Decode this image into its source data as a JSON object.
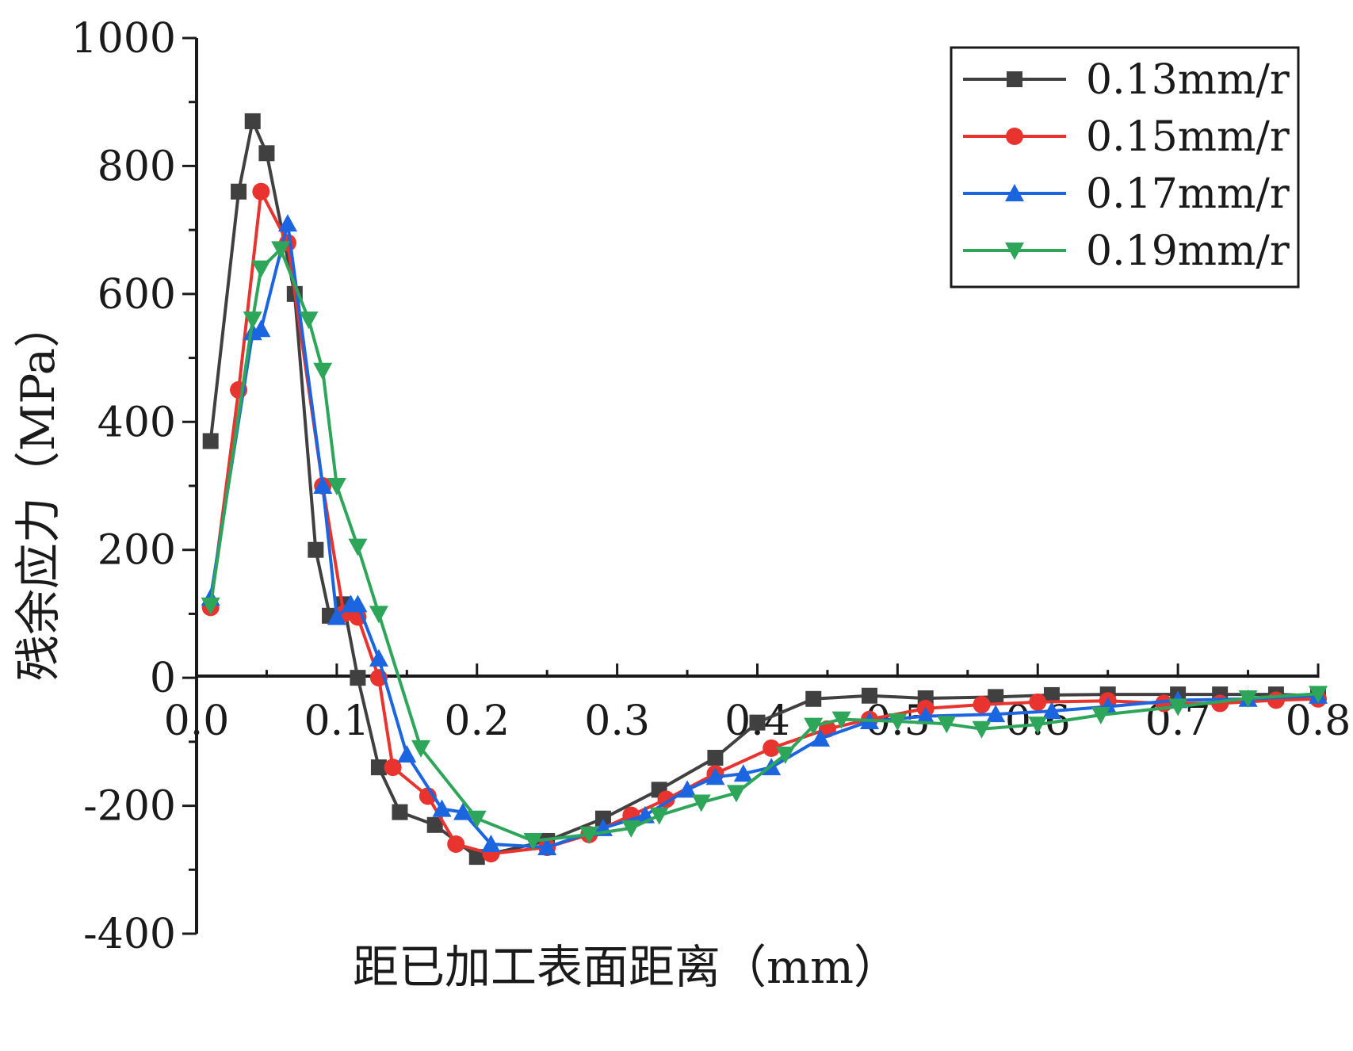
{
  "chart_data": {
    "type": "line",
    "title": "",
    "xlabel": "距已加工表面距离（mm）",
    "ylabel": "残余应力（MPa）",
    "xlim": [
      0.0,
      0.8
    ],
    "ylim": [
      -400,
      1000
    ],
    "x_ticks": [
      0.0,
      0.1,
      0.2,
      0.3,
      0.4,
      0.5,
      0.6,
      0.7,
      0.8
    ],
    "x_tick_labels": [
      "0.0",
      "0.1",
      "0.2",
      "0.3",
      "0.4",
      "0.5",
      "0.6",
      "0.7",
      "0.8"
    ],
    "y_ticks": [
      -400,
      -200,
      0,
      200,
      400,
      600,
      800,
      1000
    ],
    "y_tick_labels": [
      "-400",
      "-200",
      "0",
      "200",
      "400",
      "600",
      "800",
      "1000"
    ],
    "grid": false,
    "legend_position": "top-right",
    "series": [
      {
        "name": "0.13mm/r",
        "color": "#404040",
        "marker": "square",
        "points": [
          [
            0.01,
            370
          ],
          [
            0.03,
            760
          ],
          [
            0.04,
            870
          ],
          [
            0.05,
            820
          ],
          [
            0.07,
            600
          ],
          [
            0.085,
            200
          ],
          [
            0.095,
            97
          ],
          [
            0.105,
            115
          ],
          [
            0.115,
            0
          ],
          [
            0.13,
            -140
          ],
          [
            0.145,
            -210
          ],
          [
            0.17,
            -230
          ],
          [
            0.2,
            -280
          ],
          [
            0.25,
            -255
          ],
          [
            0.29,
            -220
          ],
          [
            0.33,
            -175
          ],
          [
            0.37,
            -125
          ],
          [
            0.4,
            -70
          ],
          [
            0.44,
            -33
          ],
          [
            0.48,
            -28
          ],
          [
            0.52,
            -32
          ],
          [
            0.57,
            -30
          ],
          [
            0.61,
            -27
          ],
          [
            0.65,
            -26
          ],
          [
            0.7,
            -26
          ],
          [
            0.73,
            -26
          ],
          [
            0.77,
            -26
          ],
          [
            0.8,
            -28
          ]
        ]
      },
      {
        "name": "0.15mm/r",
        "color": "#e8332e",
        "marker": "circle",
        "points": [
          [
            0.01,
            110
          ],
          [
            0.03,
            450
          ],
          [
            0.046,
            760
          ],
          [
            0.065,
            680
          ],
          [
            0.09,
            300
          ],
          [
            0.105,
            100
          ],
          [
            0.115,
            95
          ],
          [
            0.13,
            0
          ],
          [
            0.14,
            -140
          ],
          [
            0.165,
            -185
          ],
          [
            0.185,
            -260
          ],
          [
            0.21,
            -275
          ],
          [
            0.25,
            -265
          ],
          [
            0.28,
            -245
          ],
          [
            0.31,
            -215
          ],
          [
            0.335,
            -190
          ],
          [
            0.37,
            -150
          ],
          [
            0.41,
            -110
          ],
          [
            0.45,
            -80
          ],
          [
            0.48,
            -65
          ],
          [
            0.52,
            -48
          ],
          [
            0.56,
            -42
          ],
          [
            0.6,
            -38
          ],
          [
            0.65,
            -36
          ],
          [
            0.69,
            -40
          ],
          [
            0.73,
            -40
          ],
          [
            0.77,
            -35
          ],
          [
            0.8,
            -33
          ]
        ]
      },
      {
        "name": "0.17mm/r",
        "color": "#1c65e0",
        "marker": "triangle-up",
        "points": [
          [
            0.01,
            125
          ],
          [
            0.04,
            540
          ],
          [
            0.046,
            545
          ],
          [
            0.065,
            710
          ],
          [
            0.09,
            300
          ],
          [
            0.1,
            95
          ],
          [
            0.11,
            115
          ],
          [
            0.115,
            115
          ],
          [
            0.13,
            30
          ],
          [
            0.15,
            -120
          ],
          [
            0.175,
            -205
          ],
          [
            0.19,
            -210
          ],
          [
            0.21,
            -260
          ],
          [
            0.25,
            -265
          ],
          [
            0.29,
            -235
          ],
          [
            0.32,
            -215
          ],
          [
            0.35,
            -175
          ],
          [
            0.37,
            -155
          ],
          [
            0.39,
            -150
          ],
          [
            0.41,
            -140
          ],
          [
            0.445,
            -95
          ],
          [
            0.48,
            -68
          ],
          [
            0.52,
            -60
          ],
          [
            0.57,
            -57
          ],
          [
            0.61,
            -52
          ],
          [
            0.65,
            -45
          ],
          [
            0.7,
            -35
          ],
          [
            0.75,
            -33
          ],
          [
            0.8,
            -28
          ]
        ]
      },
      {
        "name": "0.19mm/r",
        "color": "#2ea65a",
        "marker": "triangle-down",
        "points": [
          [
            0.01,
            113
          ],
          [
            0.04,
            560
          ],
          [
            0.046,
            640
          ],
          [
            0.06,
            670
          ],
          [
            0.08,
            560
          ],
          [
            0.09,
            480
          ],
          [
            0.1,
            300
          ],
          [
            0.115,
            205
          ],
          [
            0.13,
            100
          ],
          [
            0.16,
            -110
          ],
          [
            0.2,
            -220
          ],
          [
            0.24,
            -255
          ],
          [
            0.28,
            -245
          ],
          [
            0.31,
            -235
          ],
          [
            0.33,
            -215
          ],
          [
            0.36,
            -195
          ],
          [
            0.385,
            -180
          ],
          [
            0.42,
            -120
          ],
          [
            0.44,
            -75
          ],
          [
            0.46,
            -65
          ],
          [
            0.5,
            -68
          ],
          [
            0.535,
            -72
          ],
          [
            0.56,
            -80
          ],
          [
            0.6,
            -73
          ],
          [
            0.645,
            -58
          ],
          [
            0.7,
            -45
          ],
          [
            0.75,
            -32
          ],
          [
            0.8,
            -25
          ]
        ]
      }
    ]
  }
}
